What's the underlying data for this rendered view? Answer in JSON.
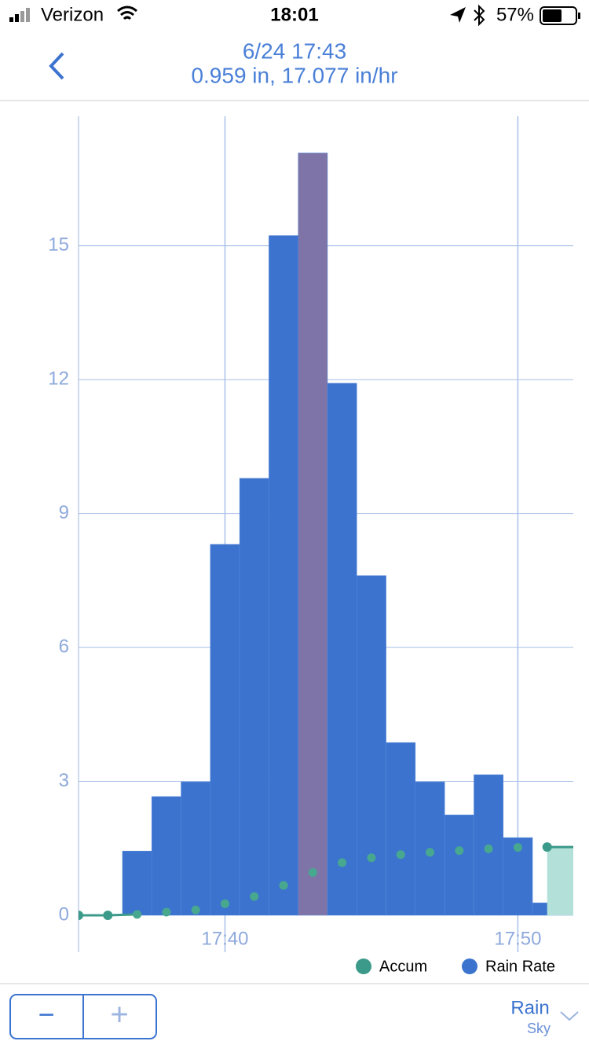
{
  "status_bar": {
    "carrier": "Verizon",
    "time": "18:01",
    "battery": "57%"
  },
  "header": {
    "title": "6/24 17:43",
    "subtitle": "0.959 in, 17.077 in/hr"
  },
  "chart_data": {
    "type": "bar",
    "x": [
      "17:35",
      "17:36",
      "17:37",
      "17:38",
      "17:39",
      "17:40",
      "17:41",
      "17:42",
      "17:43",
      "17:44",
      "17:45",
      "17:46",
      "17:47",
      "17:48",
      "17:49",
      "17:50",
      "17:51",
      "17:52"
    ],
    "xlim": [
      "17:35",
      "17:52"
    ],
    "xticks": [
      "17:40",
      "17:50"
    ],
    "ylim": [
      0,
      17.9
    ],
    "yticks": [
      0,
      3,
      6,
      9,
      12,
      15
    ],
    "grid": true,
    "series": [
      {
        "name": "Rain Rate",
        "color": "#3b73cf",
        "colors": [
          null,
          null,
          "#3b73cf",
          "#3b73cf",
          "#3b73cf",
          "#3b73cf",
          "#3b73cf",
          "#3b73cf",
          "#7e74a7",
          "#3b73cf",
          "#3b73cf",
          "#3b73cf",
          "#3b73cf",
          "#3b73cf",
          "#3b73cf",
          "#3b73cf",
          "#3b73cf",
          "#3b73cf"
        ],
        "values": [
          null,
          null,
          1.44,
          2.66,
          2.99,
          8.31,
          9.79,
          15.23,
          17.077,
          11.92,
          7.61,
          3.87,
          2.99,
          2.25,
          3.15,
          1.74,
          0.28,
          0.09
        ]
      },
      {
        "name": "Accum",
        "color": "#3c9a8a",
        "values": [
          0,
          0,
          0.02,
          0.07,
          0.12,
          0.26,
          0.42,
          0.67,
          0.959,
          1.18,
          1.29,
          1.36,
          1.41,
          1.45,
          1.49,
          1.52,
          1.53,
          null
        ]
      }
    ]
  },
  "footer": {
    "minus": "−",
    "plus": "+",
    "selector": "Rain",
    "sub": "Sky"
  }
}
